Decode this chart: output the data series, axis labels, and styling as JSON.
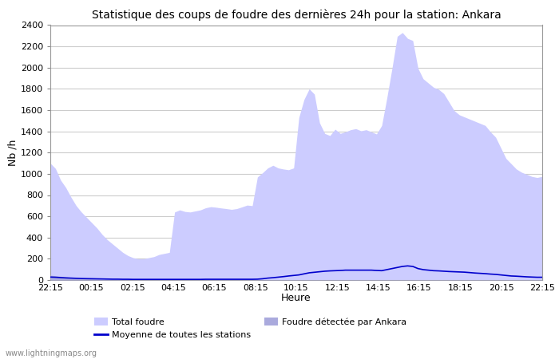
{
  "title": "Statistique des coups de foudre des dernières 24h pour la station: Ankara",
  "xlabel": "Heure",
  "ylabel": "Nb /h",
  "xlim": [
    0,
    96
  ],
  "ylim": [
    0,
    2400
  ],
  "yticks": [
    0,
    200,
    400,
    600,
    800,
    1000,
    1200,
    1400,
    1600,
    1800,
    2000,
    2200,
    2400
  ],
  "xtick_labels": [
    "22:15",
    "00:15",
    "02:15",
    "04:15",
    "06:15",
    "08:15",
    "10:15",
    "12:15",
    "14:15",
    "16:15",
    "18:15",
    "20:15",
    "22:15"
  ],
  "xtick_positions": [
    0,
    8,
    16,
    24,
    32,
    40,
    48,
    56,
    64,
    72,
    80,
    88,
    96
  ],
  "background_color": "#ffffff",
  "plot_bg_color": "#ffffff",
  "grid_color": "#cccccc",
  "title_fontsize": 10,
  "watermark": "www.lightningmaps.org",
  "color_total": "#ccccff",
  "color_ankara": "#aaaadd",
  "color_moyenne": "#0000cc",
  "total_foudre": [
    1100,
    1050,
    940,
    870,
    780,
    700,
    640,
    590,
    540,
    490,
    430,
    380,
    340,
    300,
    260,
    230,
    210,
    200,
    200,
    210,
    220,
    240,
    250,
    260,
    640,
    660,
    645,
    640,
    650,
    660,
    680,
    690,
    685,
    678,
    672,
    665,
    672,
    688,
    705,
    700,
    970,
    1010,
    1055,
    1080,
    1055,
    1045,
    1038,
    1055,
    1530,
    1700,
    1800,
    1750,
    1480,
    1380,
    1360,
    1420,
    1380,
    1395,
    1415,
    1425,
    1405,
    1415,
    1395,
    1375,
    1455,
    1715,
    1995,
    2295,
    2330,
    2275,
    2255,
    1995,
    1895,
    1855,
    1815,
    1795,
    1755,
    1675,
    1595,
    1555,
    1535,
    1515,
    1495,
    1475,
    1455,
    1395,
    1345,
    1245,
    1145,
    1095,
    1045,
    1015,
    995,
    975,
    965,
    975
  ],
  "ankara_foudre": [
    45,
    40,
    35,
    30,
    25,
    20,
    16,
    13,
    10,
    8,
    6,
    5,
    4,
    4,
    3,
    3,
    3,
    3,
    3,
    3,
    3,
    3,
    3,
    3,
    3,
    3,
    3,
    3,
    3,
    3,
    3,
    3,
    3,
    3,
    3,
    3,
    3,
    3,
    3,
    3,
    3,
    3,
    3,
    3,
    3,
    3,
    3,
    3,
    3,
    3,
    3,
    3,
    3,
    3,
    3,
    3,
    3,
    3,
    3,
    3,
    3,
    3,
    3,
    3,
    3,
    3,
    3,
    3,
    3,
    3,
    3,
    3,
    3,
    3,
    3,
    3,
    3,
    3,
    3,
    3,
    3,
    3,
    3,
    3,
    3,
    3,
    3,
    3,
    3,
    3,
    3,
    3,
    3,
    3,
    3,
    3
  ],
  "moyenne": [
    28,
    26,
    23,
    20,
    18,
    16,
    14,
    13,
    12,
    11,
    10,
    9,
    8,
    8,
    7,
    7,
    6,
    6,
    6,
    6,
    6,
    6,
    6,
    6,
    6,
    6,
    6,
    6,
    6,
    6,
    7,
    7,
    7,
    7,
    7,
    7,
    7,
    7,
    7,
    7,
    8,
    12,
    18,
    22,
    27,
    32,
    38,
    43,
    48,
    58,
    68,
    73,
    78,
    83,
    86,
    88,
    90,
    93,
    93,
    93,
    93,
    93,
    93,
    90,
    88,
    98,
    108,
    118,
    128,
    133,
    128,
    108,
    98,
    93,
    88,
    86,
    83,
    80,
    78,
    76,
    74,
    70,
    66,
    63,
    60,
    56,
    53,
    48,
    43,
    38,
    36,
    33,
    30,
    28,
    26,
    26
  ],
  "legend_items": [
    {
      "label": "Total foudre",
      "type": "patch",
      "color": "#ccccff"
    },
    {
      "label": "Moyenne de toutes les stations",
      "type": "line",
      "color": "#0000cc"
    },
    {
      "label": "Foudre détectée par Ankara",
      "type": "patch",
      "color": "#aaaadd"
    }
  ]
}
